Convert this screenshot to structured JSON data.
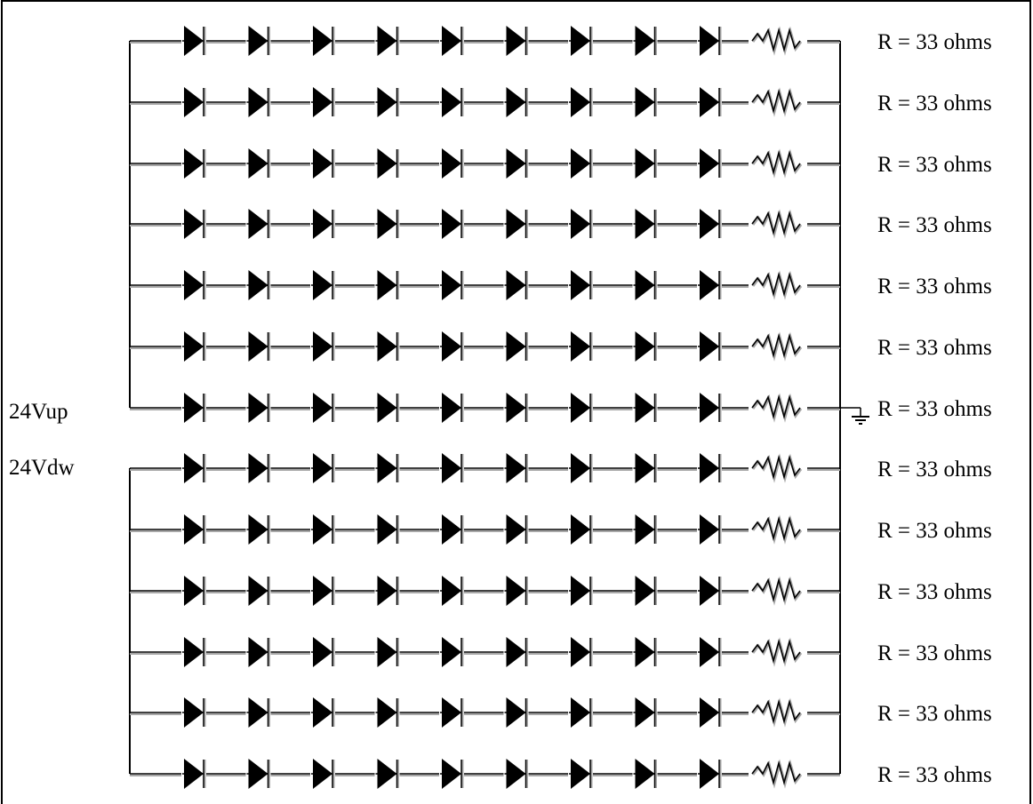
{
  "diagram": {
    "supply_labels": {
      "upper": "24Vup",
      "lower": "24Vdw"
    },
    "rows": [
      {
        "resistor_label": "R = 33 ohms",
        "led_count": 9
      },
      {
        "resistor_label": "R = 33 ohms",
        "led_count": 9
      },
      {
        "resistor_label": "R = 33 ohms",
        "led_count": 9
      },
      {
        "resistor_label": "R = 33 ohms",
        "led_count": 9
      },
      {
        "resistor_label": "R = 33 ohms",
        "led_count": 9
      },
      {
        "resistor_label": "R = 33 ohms",
        "led_count": 9
      },
      {
        "resistor_label": "R = 33 ohms",
        "led_count": 9
      },
      {
        "resistor_label": "R = 33 ohms",
        "led_count": 9
      },
      {
        "resistor_label": "R = 33 ohms",
        "led_count": 9
      },
      {
        "resistor_label": "R = 33 ohms",
        "led_count": 9
      },
      {
        "resistor_label": "R = 33 ohms",
        "led_count": 9
      },
      {
        "resistor_label": "R = 33 ohms",
        "led_count": 9
      },
      {
        "resistor_label": "R = 33 ohms",
        "led_count": 9
      }
    ],
    "upper_group_rows": 7,
    "ground_symbol": "ground-icon",
    "colors": {
      "line": "#000000",
      "wire_shadow": "#a8a8a8",
      "background": "#ffffff"
    }
  }
}
